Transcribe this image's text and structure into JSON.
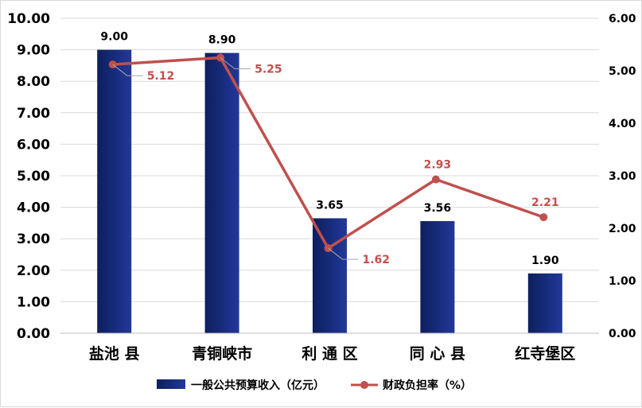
{
  "chart_data": {
    "type": "bar",
    "categories": [
      "盐池县",
      "青铜峡市",
      "利通区",
      "同心县",
      "红寺堡区"
    ],
    "category_display": [
      "盐池 县",
      "青铜峡市",
      "利 通 区",
      "同 心 县",
      "红寺堡区"
    ],
    "series": [
      {
        "name": "一般公共预算收入（亿元）",
        "type": "bar",
        "axis": "left",
        "values": [
          9.0,
          8.9,
          3.65,
          3.56,
          1.9
        ],
        "value_labels": [
          "9.00",
          "8.90",
          "3.65",
          "3.56",
          "1.90"
        ],
        "color_start": "#0d1f5c",
        "color_end": "#22389a"
      },
      {
        "name": "财政负担率（%）",
        "type": "line",
        "axis": "right",
        "values": [
          5.12,
          5.25,
          1.62,
          2.93,
          2.21
        ],
        "value_labels": [
          "5.12",
          "5.25",
          "1.62",
          "2.93",
          "2.21"
        ],
        "color": "#c0504d"
      }
    ],
    "y_left": {
      "range": [
        0,
        10
      ],
      "ticks": [
        "0.00",
        "1.00",
        "2.00",
        "3.00",
        "4.00",
        "5.00",
        "6.00",
        "7.00",
        "8.00",
        "9.00",
        "10.00"
      ]
    },
    "y_right": {
      "range": [
        0,
        6
      ],
      "ticks": [
        "0.00",
        "1.00",
        "2.00",
        "3.00",
        "4.00",
        "5.00",
        "6.00"
      ]
    },
    "grid": true,
    "legend_position": "bottom",
    "title": "",
    "xlabel": "",
    "ylabel": ""
  }
}
